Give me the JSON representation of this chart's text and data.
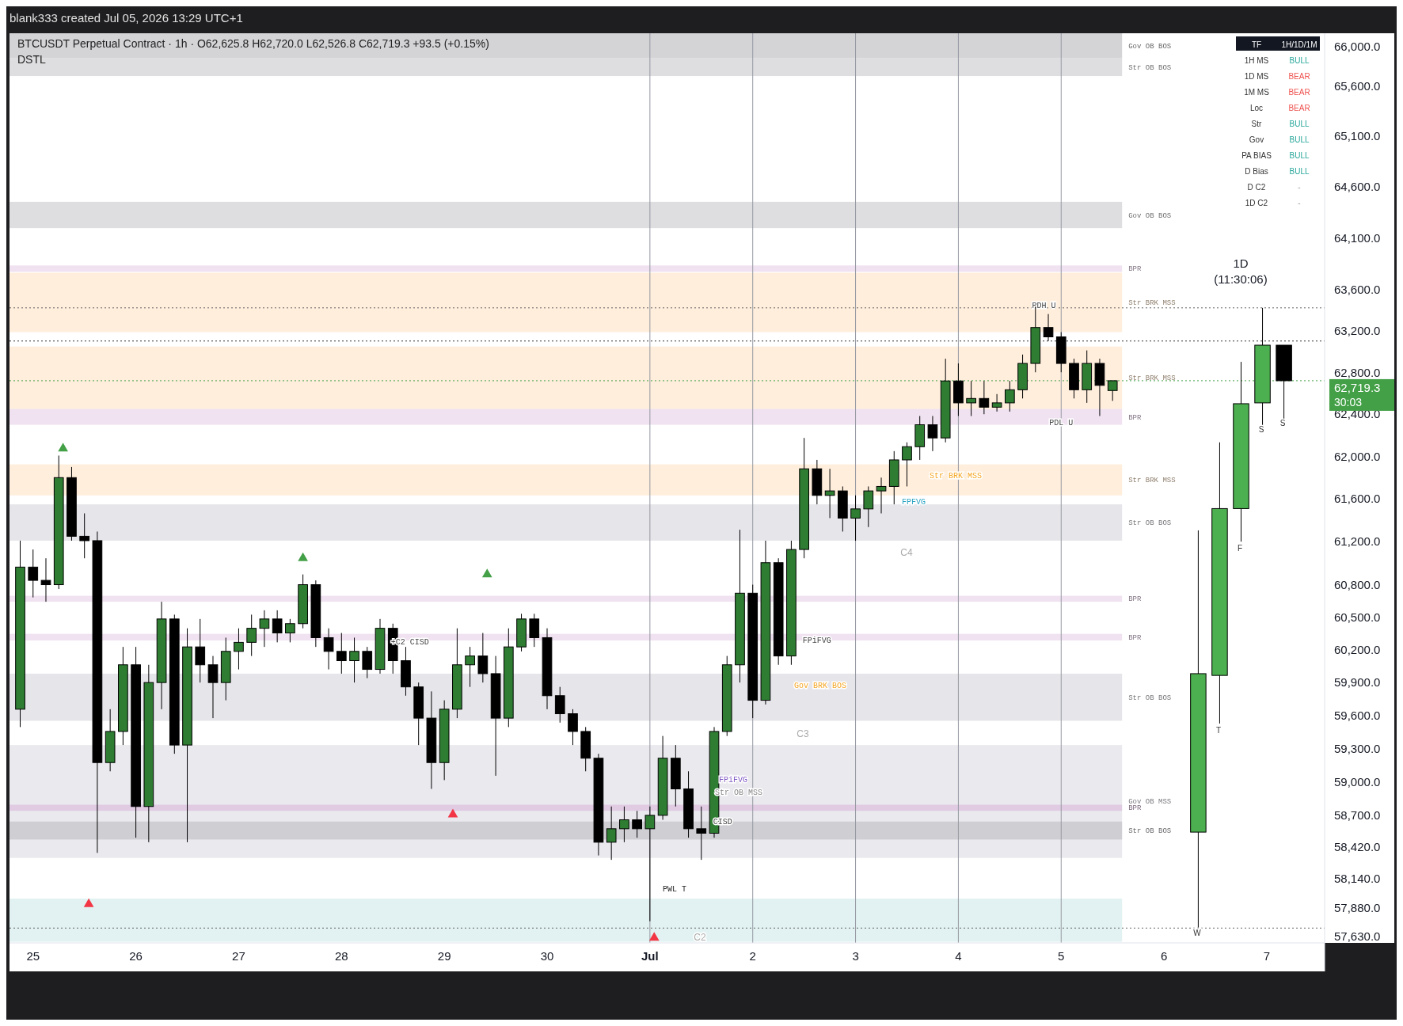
{
  "chart_data": [
    {
      "type": "candlestick",
      "title": "BTCUSDT Perpetual Contract · 1h · O62,625.8 H62,720.0 L62,526.8 C62,719.3 +93.5 (+0.15%)",
      "subtitle": "DSTL",
      "log": "y",
      "xlim": [
        "2026-06-24T18:30",
        "2026-07-07T13:30"
      ],
      "ylim": [
        57570,
        66130
      ],
      "xticks": [
        {
          "value": "2026-06-25",
          "label": "25"
        },
        {
          "value": "2026-06-26",
          "label": "26"
        },
        {
          "value": "2026-06-27",
          "label": "27"
        },
        {
          "value": "2026-06-28",
          "label": "28"
        },
        {
          "value": "2026-06-29",
          "label": "29"
        },
        {
          "value": "2026-06-30",
          "label": "30"
        },
        {
          "value": "2026-07-01",
          "label": "Jul"
        },
        {
          "value": "2026-07-02",
          "label": "2"
        },
        {
          "value": "2026-07-03",
          "label": "3"
        },
        {
          "value": "2026-07-04",
          "label": "4"
        },
        {
          "value": "2026-07-05",
          "label": "5"
        },
        {
          "value": "2026-07-06",
          "label": "6"
        },
        {
          "value": "2026-07-07",
          "label": "7"
        }
      ],
      "yticks": [
        {
          "value": 66000,
          "label": "66,000.0"
        },
        {
          "value": 65600,
          "label": "65,600.0"
        },
        {
          "value": 65100,
          "label": "65,100.0"
        },
        {
          "value": 64600,
          "label": "64,600.0"
        },
        {
          "value": 64100,
          "label": "64,100.0"
        },
        {
          "value": 63600,
          "label": "63,600.0"
        },
        {
          "value": 63200,
          "label": "63,200.0"
        },
        {
          "value": 62800,
          "label": "62,800.0"
        },
        {
          "value": 62400,
          "label": "62,400.0"
        },
        {
          "value": 62000,
          "label": "62,000.0"
        },
        {
          "value": 61600,
          "label": "61,600.0"
        },
        {
          "value": 61200,
          "label": "61,200.0"
        },
        {
          "value": 60800,
          "label": "60,800.0"
        },
        {
          "value": 60500,
          "label": "60,500.0"
        },
        {
          "value": 60200,
          "label": "60,200.0"
        },
        {
          "value": 59900,
          "label": "59,900.0"
        },
        {
          "value": 59600,
          "label": "59,600.0"
        },
        {
          "value": 59300,
          "label": "59,300.0"
        },
        {
          "value": 59000,
          "label": "59,000.0"
        },
        {
          "value": 58700,
          "label": "58,700.0"
        },
        {
          "value": 58420,
          "label": "58,420.0"
        },
        {
          "value": 58140,
          "label": "58,140.0"
        },
        {
          "value": 57880,
          "label": "57,880.0"
        },
        {
          "value": 57630,
          "label": "57,630.0"
        }
      ],
      "bands": [
        {
          "axis": "y",
          "from": 65880,
          "to": 66130,
          "label": "Gov OB BOS",
          "color": "#b8b8bc"
        },
        {
          "axis": "y",
          "from": 65700,
          "to": 65880,
          "label": "Str OB BOS",
          "color": "#c8c8cc"
        },
        {
          "axis": "y",
          "from": 64195,
          "to": 64453,
          "label": "Gov OB BOS",
          "color": "#c8c8cc"
        },
        {
          "axis": "y",
          "from": 63769,
          "to": 63831,
          "label": "BPR",
          "color": "#e6cfe8"
        },
        {
          "axis": "y",
          "from": 63185,
          "to": 63760,
          "label": "Str BRK MSS",
          "color": "#ffe3c4"
        },
        {
          "axis": "y",
          "from": 62450,
          "to": 63047,
          "label": "Str BRK MSS",
          "color": "#ffe3c4"
        },
        {
          "axis": "y",
          "from": 62300,
          "to": 62450,
          "label": "BPR",
          "color": "#e6cfe8"
        },
        {
          "axis": "y",
          "from": 61633,
          "to": 61925,
          "label": "Str BRK MSS",
          "color": "#ffe3c4"
        },
        {
          "axis": "y",
          "from": 61209,
          "to": 61549,
          "label": "Str OB BOS",
          "color": "#d6d4dc"
        },
        {
          "axis": "y",
          "from": 60642,
          "to": 60697,
          "label": "BPR",
          "color": "#e6cfe8"
        },
        {
          "axis": "y",
          "from": 60285,
          "to": 60346,
          "label": "BPR",
          "color": "#e6cfe8"
        },
        {
          "axis": "y",
          "from": 59552,
          "to": 59981,
          "label": "Str OB BOS",
          "color": "#d6d4dc"
        },
        {
          "axis": "y",
          "from": 58320,
          "to": 59332,
          "label": "Gov OB MSS",
          "color": "#dcdae2"
        },
        {
          "axis": "y",
          "from": 58740,
          "to": 58795,
          "label": "BPR",
          "color": "#d9b8dc"
        },
        {
          "axis": "y",
          "from": 58484,
          "to": 58644,
          "label": "Str OB BOS",
          "color": "#bdbcc2"
        },
        {
          "axis": "y",
          "from": 57580,
          "to": 57960,
          "color": "#cfe9ea"
        }
      ],
      "ref_lines": [
        {
          "axis": "x",
          "value": "2026-07-01",
          "color": "#9598a1"
        },
        {
          "axis": "x",
          "value": "2026-07-02",
          "color": "#9598a1"
        },
        {
          "axis": "x",
          "value": "2026-07-03",
          "color": "#9598a1"
        },
        {
          "axis": "x",
          "value": "2026-07-04",
          "color": "#9598a1"
        },
        {
          "axis": "x",
          "value": "2026-07-05",
          "color": "#9598a1"
        },
        {
          "axis": "y",
          "value": 63420,
          "color": "#666666",
          "line_style": "dotted"
        },
        {
          "axis": "y",
          "value": 63100,
          "color": "#333333",
          "line_style": "dotted"
        },
        {
          "axis": "y",
          "value": 62719.3,
          "label": "62,719.3",
          "color": "#43a047",
          "line_style": "dotted"
        },
        {
          "axis": "y",
          "value": 57700,
          "color": "#666666",
          "line_style": "dotted"
        }
      ],
      "annotations": [
        "blank333 created Jul 05, 2026 13:29 UTC+1",
        "30:03",
        "1D",
        "(11:30:06)",
        "W",
        "T",
        "F",
        "S",
        "S",
        "PWL T",
        "C4",
        "C3",
        "C2",
        "FPFVG",
        "Gov BRK BOS",
        "Str BRK MSS",
        "FPiFVG",
        "Str OB MSS",
        {
          "text": "PDH U",
          "x": "2026-07-04T20:00",
          "y": 63420
        },
        {
          "text": "PDL U",
          "x": "2026-07-05T00:00",
          "y": 62300
        },
        {
          "text": "FPiFVG",
          "x": "2026-07-02T15:00",
          "y": 60260
        },
        {
          "text": "+C2 CISD",
          "x": "2026-06-28T16:00",
          "y": 60250
        },
        {
          "text": "CISD",
          "x": "2026-07-01T17:00",
          "y": 58620
        }
      ],
      "series": [
        {
          "type": "candlestick",
          "colors": [
            "#2e7d32",
            "#000000",
            "#000000",
            "#2e7d32",
            "#000000",
            "#000000",
            "#000000",
            "#2e7d32",
            "#2e7d32",
            "#000000",
            "#2e7d32",
            "#2e7d32",
            "#000000",
            "#2e7d32",
            "#000000",
            "#000000",
            "#2e7d32",
            "#2e7d32",
            "#2e7d32",
            "#2e7d32",
            "#000000",
            "#2e7d32",
            "#2e7d32",
            "#000000",
            "#000000",
            "#000000",
            "#2e7d32",
            "#000000",
            "#2e7d32",
            "#000000",
            "#000000",
            "#000000",
            "#000000",
            "#2e7d32",
            "#2e7d32",
            "#2e7d32",
            "#000000",
            "#000000",
            "#2e7d32",
            "#2e7d32",
            "#000000",
            "#000000",
            "#000000",
            "#000000",
            "#000000",
            "#000000",
            "#2e7d32",
            "#2e7d32",
            "#000000",
            "#2e7d32",
            "#2e7d32",
            "#000000",
            "#000000",
            "#000000",
            "#2e7d32",
            "#2e7d32",
            "#2e7d32",
            "#000000",
            "#2e7d32",
            "#000000",
            "#2e7d32",
            "#2e7d32",
            "#000000",
            "#2e7d32",
            "#000000",
            "#2e7d32",
            "#2e7d32",
            "#2e7d32",
            "#2e7d32",
            "#2e7d32",
            "#2e7d32",
            "#000000",
            "#2e7d32",
            "#000000",
            "#2e7d32",
            "#000000",
            "#2e7d32",
            "#2e7d32",
            "#2e7d32",
            "#2e7d32",
            "#000000",
            "#000000",
            "#000000",
            "#2e7d32",
            "#000000",
            "#2e7d32"
          ],
          "x": [
            "2026-06-24T21:00",
            "2026-06-25T00:00",
            "2026-06-25T03:00",
            "2026-06-25T06:00",
            "2026-06-25T09:00",
            "2026-06-25T12:00",
            "2026-06-25T15:00",
            "2026-06-25T18:00",
            "2026-06-25T21:00",
            "2026-06-26T00:00",
            "2026-06-26T03:00",
            "2026-06-26T06:00",
            "2026-06-26T09:00",
            "2026-06-26T12:00",
            "2026-06-26T15:00",
            "2026-06-26T18:00",
            "2026-06-26T21:00",
            "2026-06-27T00:00",
            "2026-06-27T03:00",
            "2026-06-27T06:00",
            "2026-06-27T09:00",
            "2026-06-27T12:00",
            "2026-06-27T15:00",
            "2026-06-27T18:00",
            "2026-06-27T21:00",
            "2026-06-28T00:00",
            "2026-06-28T03:00",
            "2026-06-28T06:00",
            "2026-06-28T09:00",
            "2026-06-28T12:00",
            "2026-06-28T15:00",
            "2026-06-28T18:00",
            "2026-06-28T21:00",
            "2026-06-29T00:00",
            "2026-06-29T03:00",
            "2026-06-29T06:00",
            "2026-06-29T09:00",
            "2026-06-29T12:00",
            "2026-06-29T15:00",
            "2026-06-29T18:00",
            "2026-06-29T21:00",
            "2026-06-30T00:00",
            "2026-06-30T03:00",
            "2026-06-30T06:00",
            "2026-06-30T09:00",
            "2026-06-30T12:00",
            "2026-06-30T15:00",
            "2026-06-30T18:00",
            "2026-06-30T21:00",
            "2026-07-01T00:00",
            "2026-07-01T03:00",
            "2026-07-01T06:00",
            "2026-07-01T09:00",
            "2026-07-01T12:00",
            "2026-07-01T15:00",
            "2026-07-01T18:00",
            "2026-07-01T21:00",
            "2026-07-02T00:00",
            "2026-07-02T03:00",
            "2026-07-02T06:00",
            "2026-07-02T09:00",
            "2026-07-02T12:00",
            "2026-07-02T15:00",
            "2026-07-02T18:00",
            "2026-07-02T21:00",
            "2026-07-03T00:00",
            "2026-07-03T03:00",
            "2026-07-03T06:00",
            "2026-07-03T09:00",
            "2026-07-03T12:00",
            "2026-07-03T15:00",
            "2026-07-03T18:00",
            "2026-07-03T21:00",
            "2026-07-04T00:00",
            "2026-07-04T03:00",
            "2026-07-04T06:00",
            "2026-07-04T09:00",
            "2026-07-04T12:00",
            "2026-07-04T15:00",
            "2026-07-04T18:00",
            "2026-07-04T21:00",
            "2026-07-05T00:00",
            "2026-07-05T03:00",
            "2026-07-05T06:00",
            "2026-07-05T09:00",
            "2026-07-05T12:00"
          ],
          "ohlc": [
            [
              59657,
              61209,
              59495,
              60963
            ],
            [
              60963,
              61127,
              60682,
              60840
            ],
            [
              60840,
              61045,
              60642,
              60800
            ],
            [
              60800,
              62008,
              60760,
              61800
            ],
            [
              61800,
              61900,
              61209,
              61250
            ],
            [
              61250,
              61464,
              61045,
              61209
            ],
            [
              61209,
              61294,
              58365,
              59174
            ],
            [
              59174,
              59657,
              59095,
              59455
            ],
            [
              59455,
              60226,
              59332,
              60062
            ],
            [
              60062,
              60226,
              58500,
              58779
            ],
            [
              58779,
              60062,
              58460,
              59900
            ],
            [
              59900,
              60642,
              59657,
              60483
            ],
            [
              60483,
              60523,
              59253,
              59332
            ],
            [
              59332,
              60397,
              58460,
              60226
            ],
            [
              60226,
              60483,
              59900,
              60062
            ],
            [
              60062,
              60143,
              59576,
              59900
            ],
            [
              59900,
              60311,
              59738,
              60185
            ],
            [
              60185,
              60397,
              60020,
              60268
            ],
            [
              60268,
              60523,
              60143,
              60397
            ],
            [
              60397,
              60563,
              60226,
              60483
            ],
            [
              60483,
              60563,
              60268,
              60354
            ],
            [
              60354,
              60483,
              60268,
              60440
            ],
            [
              60440,
              60895,
              60397,
              60800
            ],
            [
              60800,
              60840,
              60226,
              60311
            ],
            [
              60311,
              60397,
              60020,
              60185
            ],
            [
              60185,
              60354,
              59981,
              60100
            ],
            [
              60100,
              60311,
              59900,
              60185
            ],
            [
              60185,
              60226,
              59940,
              60020
            ],
            [
              60020,
              60483,
              59981,
              60397
            ],
            [
              60397,
              60440,
              59981,
              60100
            ],
            [
              60100,
              60226,
              59780,
              59860
            ],
            [
              59860,
              59900,
              59332,
              59576
            ],
            [
              59576,
              59819,
              58937,
              59174
            ],
            [
              59174,
              59738,
              59016,
              59657
            ],
            [
              59657,
              60397,
              59576,
              60062
            ],
            [
              60062,
              60226,
              59860,
              60143
            ],
            [
              60143,
              60354,
              59900,
              59981
            ],
            [
              59981,
              60143,
              59055,
              59576
            ],
            [
              59576,
              60397,
              59495,
              60226
            ],
            [
              60226,
              60531,
              60185,
              60483
            ],
            [
              60483,
              60531,
              60226,
              60311
            ],
            [
              60311,
              60397,
              59657,
              59780
            ],
            [
              59780,
              59860,
              59535,
              59616
            ],
            [
              59616,
              59657,
              59332,
              59455
            ],
            [
              59455,
              59495,
              59095,
              59213
            ],
            [
              59213,
              59253,
              58342,
              58460
            ],
            [
              58460,
              58779,
              58303,
              58580
            ],
            [
              58580,
              58779,
              58460,
              58660
            ],
            [
              58660,
              58740,
              58500,
              58580
            ],
            [
              58580,
              58779,
              57760,
              58700
            ],
            [
              58700,
              59414,
              58660,
              59213
            ],
            [
              59213,
              59332,
              58779,
              58937
            ],
            [
              58937,
              59095,
              58500,
              58580
            ],
            [
              58580,
              58779,
              58303,
              58540
            ],
            [
              58540,
              59495,
              58500,
              59455
            ],
            [
              59455,
              60143,
              59414,
              60062
            ],
            [
              60062,
              61311,
              59900,
              60721
            ],
            [
              60721,
              60800,
              59576,
              59738
            ],
            [
              59738,
              61209,
              59700,
              61004
            ],
            [
              61004,
              61045,
              60062,
              60143
            ],
            [
              60143,
              61209,
              60062,
              61127
            ],
            [
              61127,
              62175,
              61045,
              61883
            ],
            [
              61883,
              61967,
              61549,
              61633
            ],
            [
              61633,
              61883,
              61420,
              61675
            ],
            [
              61675,
              61717,
              61294,
              61420
            ],
            [
              61420,
              61633,
              61209,
              61506
            ],
            [
              61506,
              61717,
              61336,
              61675
            ],
            [
              61675,
              61800,
              61464,
              61717
            ],
            [
              61717,
              62050,
              61549,
              61967
            ],
            [
              61967,
              62133,
              61717,
              62092
            ],
            [
              62092,
              62383,
              61967,
              62300
            ],
            [
              62300,
              62383,
              62050,
              62175
            ],
            [
              62175,
              62930,
              62133,
              62717
            ],
            [
              62717,
              62885,
              62383,
              62508
            ],
            [
              62508,
              62717,
              62383,
              62550
            ],
            [
              62550,
              62717,
              62400,
              62467
            ],
            [
              62467,
              62592,
              62425,
              62508
            ],
            [
              62508,
              62717,
              62425,
              62633
            ],
            [
              62633,
              62970,
              62550,
              62885
            ],
            [
              62885,
              63444,
              62800,
              63230
            ],
            [
              63230,
              63360,
              63100,
              63140
            ],
            [
              63140,
              63185,
              62800,
              62885
            ],
            [
              62885,
              62930,
              62550,
              62633
            ],
            [
              62633,
              63010,
              62508,
              62885
            ],
            [
              62885,
              62930,
              62383,
              62675
            ],
            [
              62625.8,
              62720.0,
              62526.8,
              62719.3
            ]
          ]
        },
        {
          "type": "candlestick",
          "colors": [
            "#4caf50",
            "#4caf50",
            "#4caf50",
            "#4caf50",
            "#000000"
          ],
          "x": [
            "2026-07-06T08:00",
            "2026-07-06T13:00",
            "2026-07-06T18:00",
            "2026-07-06T23:00",
            "2026-07-07T04:00"
          ],
          "ohlc": [
            [
              58550,
              61305,
              57705,
              59981
            ],
            [
              59965,
              62133,
              59527,
              61509
            ],
            [
              61509,
              62900,
              61200,
              62500
            ],
            [
              62508,
              63420,
              62267,
              63060
            ],
            [
              63060,
              63060,
              62340,
              62719.3
            ]
          ]
        },
        {
          "type": "scatter",
          "marker": "triangle",
          "color": "#43a047",
          "x": [
            "2026-06-25T07:00",
            "2026-06-27T15:00",
            "2026-06-29T10:00"
          ],
          "values": [
            62075,
            61045,
            60895
          ]
        },
        {
          "type": "scatter",
          "marker": "triangle",
          "color": "#f23645",
          "x": [
            "2026-06-25T13:00",
            "2026-06-29T02:00",
            "2026-07-01T01:00"
          ],
          "values": [
            57910,
            58708,
            57615
          ]
        }
      ]
    },
    {
      "type": "other",
      "annotations": [
        "TF",
        "1H/1D/1M",
        "1H MS",
        "BULL",
        "1D MS",
        "BEAR",
        "1M MS",
        "BEAR",
        "Loc",
        "BEAR",
        "Str",
        "BULL",
        "Gov",
        "BULL",
        "PA BIAS",
        "BULL",
        "D Bias",
        "BULL",
        "D C2",
        "-",
        "1D C2",
        "-"
      ],
      "colors": [
        "#ffffff",
        "#ffffff",
        "#333333",
        "#26a69a",
        "#333333",
        "#ef5350",
        "#333333",
        "#ef5350",
        "#333333",
        "#ef5350",
        "#333333",
        "#26a69a",
        "#333333",
        "#26a69a",
        "#333333",
        "#26a69a",
        "#333333",
        "#26a69a",
        "#333333",
        "#999999",
        "#333333",
        "#999999"
      ]
    }
  ]
}
